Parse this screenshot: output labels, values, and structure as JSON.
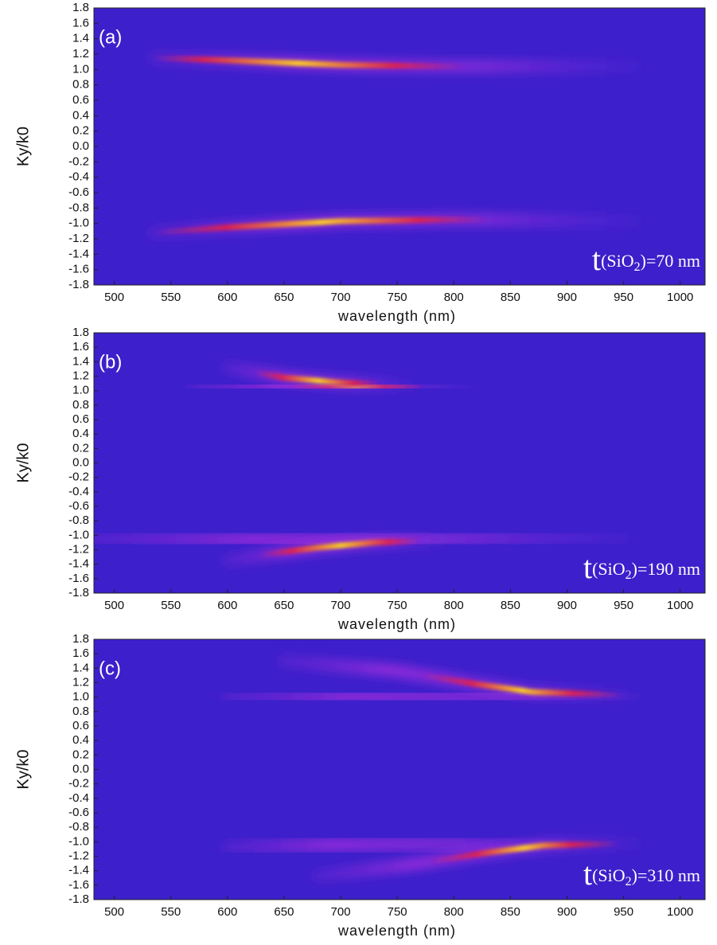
{
  "chart_data": [
    {
      "type": "heatmap",
      "panel_label": "(a)",
      "annotation": [
        "t",
        "(SiO",
        "2",
        ")=70 nm"
      ],
      "x_label": "wavelength (nm)",
      "y_label": "Ky/k0",
      "xlim": [
        482,
        1022
      ],
      "xticks": [
        500,
        550,
        600,
        650,
        700,
        750,
        800,
        850,
        900,
        950,
        1000
      ],
      "ylim": [
        -1.8,
        1.8
      ],
      "yticks": [
        1.8,
        1.6,
        1.4,
        1.2,
        {
          "value": 1,
          "label": "1.0"
        },
        0.8,
        0.6,
        0.4,
        0.2,
        {
          "value": 0,
          "label": "0.0"
        },
        -0.2,
        -0.4,
        -0.6,
        -0.8,
        {
          "value": -1,
          "label": "-1.0"
        },
        -1.2,
        -1.4,
        -1.6,
        -1.8
      ],
      "color": "#3d1fcb"
    },
    {
      "type": "heatmap",
      "panel_label": "(b)",
      "annotation": [
        "t",
        "(SiO",
        "2",
        ")=190 nm"
      ],
      "x_label": "wavelength (nm)",
      "y_label": "Ky/k0",
      "xlim": [
        482,
        1022
      ],
      "xticks": [
        500,
        550,
        600,
        650,
        700,
        750,
        800,
        850,
        900,
        950,
        1000
      ],
      "ylim": [
        -1.8,
        1.8
      ],
      "yticks": [
        1.8,
        1.6,
        1.4,
        1.2,
        {
          "value": 1,
          "label": "1.0"
        },
        0.8,
        0.6,
        0.4,
        0.2,
        {
          "value": 0,
          "label": "0.0"
        },
        -0.2,
        -0.4,
        -0.6,
        -0.8,
        {
          "value": -1,
          "label": "-1.0"
        },
        -1.2,
        -1.4,
        -1.6,
        -1.8
      ],
      "color": "#3d1fcb"
    },
    {
      "type": "heatmap",
      "panel_label": "(c)",
      "annotation": [
        "t",
        "(SiO",
        "2",
        ")=310 nm"
      ],
      "x_label": "wavelength (nm)",
      "y_label": "Ky/k0",
      "xlim": [
        482,
        1022
      ],
      "xticks": [
        500,
        550,
        600,
        650,
        700,
        750,
        800,
        850,
        900,
        950,
        1000
      ],
      "ylim": [
        -1.8,
        1.8
      ],
      "yticks": [
        1.8,
        1.6,
        1.4,
        1.2,
        {
          "value": 1,
          "label": "1.0"
        },
        0.8,
        0.6,
        0.4,
        0.2,
        {
          "value": 0,
          "label": "0.0"
        },
        -0.2,
        -0.4,
        -0.6,
        -0.8,
        {
          "value": -1,
          "label": "-1.0"
        },
        -1.2,
        -1.4,
        -1.6,
        -1.8
      ],
      "color": "#3d1fcb"
    }
  ]
}
